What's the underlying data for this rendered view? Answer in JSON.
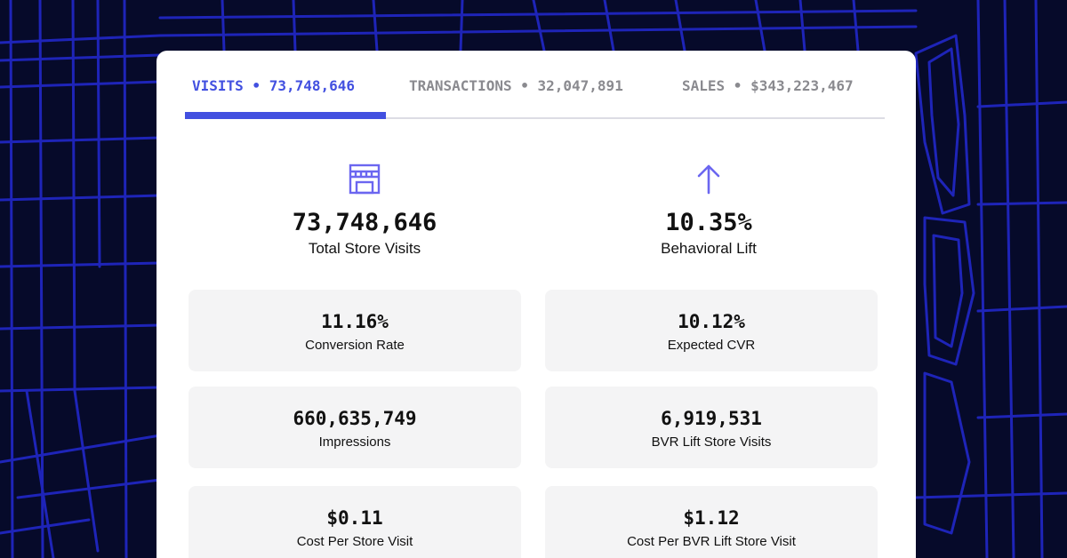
{
  "tabs": [
    {
      "label": "VISITS • 73,748,646",
      "active": true
    },
    {
      "label": "TRANSACTIONS • 32,047,891",
      "active": false
    },
    {
      "label": "SALES • $343,223,467",
      "active": false
    }
  ],
  "kpis": [
    {
      "icon": "storefront-icon",
      "value": "73,748,646",
      "label": "Total Store Visits"
    },
    {
      "icon": "arrow-up-icon",
      "value": "10.35%",
      "label": "Behavioral Lift"
    }
  ],
  "metrics": [
    {
      "value": "11.16%",
      "label": "Conversion Rate"
    },
    {
      "value": "10.12%",
      "label": "Expected CVR"
    },
    {
      "value": "660,635,749",
      "label": "Impressions"
    },
    {
      "value": "6,919,531",
      "label": "BVR Lift Store Visits"
    },
    {
      "value": "$0.11",
      "label": "Cost Per Store Visit"
    },
    {
      "value": "$1.12",
      "label": "Cost Per BVR Lift Store Visit"
    }
  ],
  "colors": {
    "accent": "#4250e0",
    "icon": "#6b66f0",
    "background": "#060a2a",
    "map_lines": "#1e24b8"
  }
}
